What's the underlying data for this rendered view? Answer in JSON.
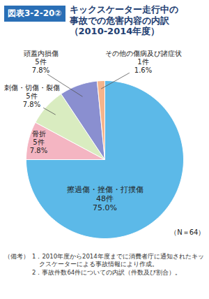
{
  "chart_data": {
    "type": "pie",
    "figure_label": "図表3-2-20②",
    "title": "キックスケーター走行中の事故での危害内容の内訳",
    "subtitle": "（2010-2014年度）",
    "categories": [
      "擦過傷・挫傷・打撲傷",
      "骨折",
      "刺傷・切傷・裂傷",
      "頭蓋内損傷",
      "その他の傷病及び諸症状"
    ],
    "values": [
      48,
      5,
      5,
      5,
      1
    ],
    "value_labels": [
      "48件",
      "5件",
      "5件",
      "5件",
      "1件"
    ],
    "percentages": [
      75.0,
      7.8,
      7.8,
      7.8,
      1.6
    ],
    "percentage_labels": [
      "75.0%",
      "7.8%",
      "7.8%",
      "7.8%",
      "1.6%"
    ],
    "colors": [
      "#5cb9e8",
      "#f4b5c2",
      "#d9ecc0",
      "#8a8fd0",
      "#f6b48b"
    ],
    "data_labels": true,
    "annotation": "（N＝64）",
    "note_heading": "（備考）",
    "notes": [
      "1．2010年度から2014年度までに消費者庁に通知されたキックスケーターによる事故情報により作成。",
      "2．事故件数64件についての内訳（件数及び割合）。"
    ]
  }
}
